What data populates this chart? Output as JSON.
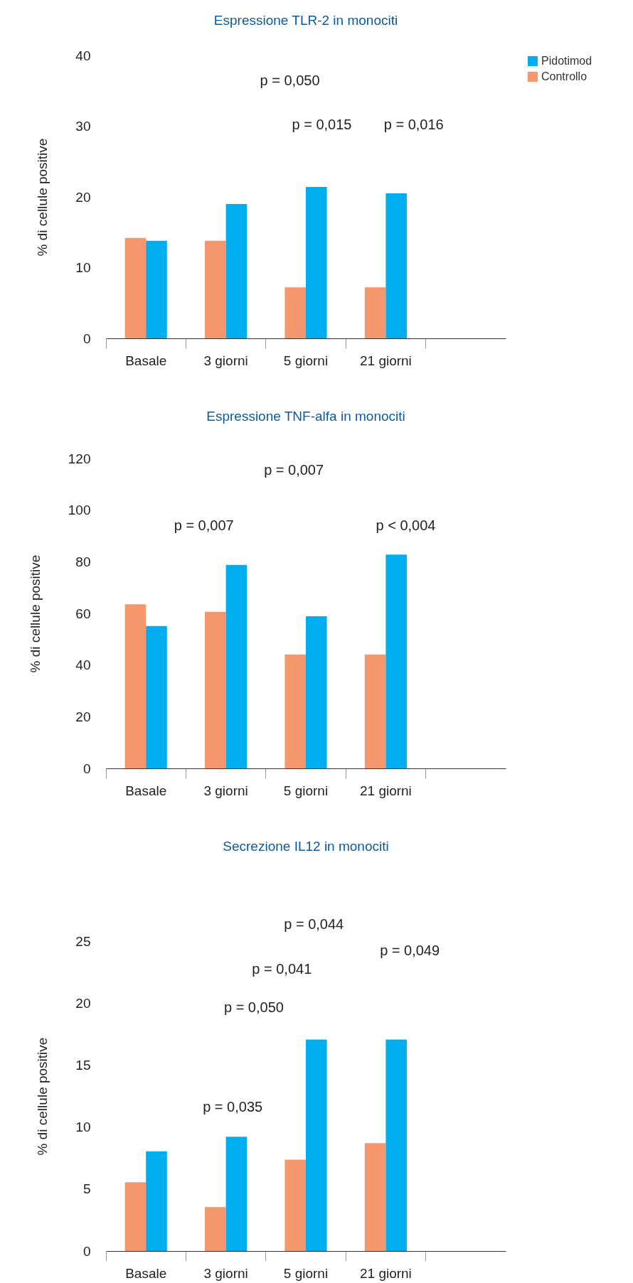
{
  "chart_data": [
    {
      "type": "bar",
      "title": "Espressione TLR-2 in monociti",
      "ylabel": "% di cellule positive",
      "categories": [
        "Basale",
        "3 giorni",
        "5 giorni",
        "21 giorni",
        null
      ],
      "series": [
        {
          "name": "Controllo",
          "color": "#f4976c",
          "values": [
            14.2,
            13.8,
            7.2,
            7.2,
            null
          ]
        },
        {
          "name": "Pidotimod",
          "color": "#00adef",
          "values": [
            13.8,
            19.0,
            21.4,
            20.5,
            null
          ]
        }
      ],
      "ylim": [
        0,
        40
      ],
      "yticks": [
        0,
        10,
        20,
        30,
        40
      ],
      "legend": "top right",
      "annotations": [
        "p = 0,050",
        "p = 0,015",
        "p = 0,016"
      ]
    },
    {
      "type": "bar",
      "title": "Espressione TNF-alfa in monociti",
      "ylabel": "% di cellule positive",
      "categories": [
        "Basale",
        "3 giorni",
        "5 giorni",
        "21 giorni",
        null
      ],
      "series": [
        {
          "name": "Controllo",
          "color": "#f4976c",
          "values": [
            63.5,
            60.6,
            44.1,
            44.1,
            null
          ]
        },
        {
          "name": "Pidotimod",
          "color": "#00adef",
          "values": [
            55.1,
            78.8,
            58.9,
            82.8,
            null
          ]
        }
      ],
      "ylim": [
        0,
        120
      ],
      "yticks": [
        0,
        20,
        40,
        60,
        80,
        100,
        120
      ],
      "legend": "top right",
      "annotations": [
        "p = 0,007",
        "p = 0,007",
        "p < 0,004"
      ]
    },
    {
      "type": "bar",
      "title": "Secrezione IL12 in monociti",
      "ylabel": "% di cellule positive",
      "categories": [
        "Basale",
        "3 giorni",
        "5 giorni",
        "21 giorni",
        null
      ],
      "series": [
        {
          "name": "Controllo",
          "color": "#f4976c",
          "values": [
            5.55,
            3.54,
            7.37,
            8.7,
            null
          ]
        },
        {
          "name": "Pidotimod",
          "color": "#00adef",
          "values": [
            8.04,
            9.22,
            17.06,
            17.06,
            null
          ]
        }
      ],
      "ylim": [
        0,
        25
      ],
      "yticks": [
        0,
        5,
        10,
        15,
        20,
        25
      ],
      "legend": "top right",
      "annotations": [
        "p = 0,044",
        "p = 0,049",
        "p = 0,041",
        "p = 0,050",
        "p = 0,035"
      ]
    }
  ]
}
